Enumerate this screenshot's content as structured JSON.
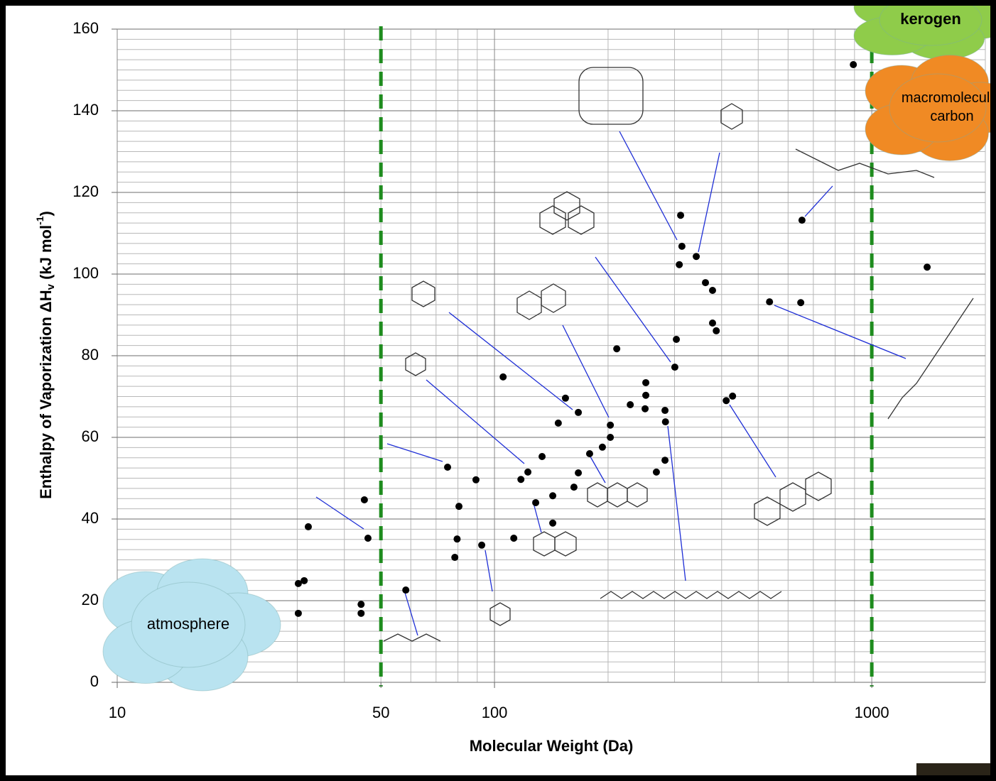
{
  "chart_data": {
    "type": "scatter",
    "xlabel": "Molecular Weight (Da)",
    "ylabel": {
      "main": "Enthalpy of Vaporization ΔH",
      "sub": "v",
      "mid": " (kJ mol",
      "sup": "-1",
      "end": ")"
    },
    "xlog": true,
    "xlim": [
      10,
      2000
    ],
    "xticks": [
      10,
      50,
      100,
      1000
    ],
    "ylim": [
      0,
      160
    ],
    "yticks": [
      0,
      20,
      40,
      60,
      80,
      100,
      120,
      140,
      160
    ],
    "grid": true,
    "yminor_step": 2.5,
    "log_minor_grid": true,
    "color": "#000000",
    "reference_lines": {
      "values": [
        50,
        1000
      ],
      "color": "#1e8c1e"
    },
    "regions": [
      {
        "label": "atmosphere",
        "color": "#b9e3f0"
      },
      {
        "label": "kerogen",
        "color": "#8fcc4a"
      },
      {
        "label": "macromolecular carbon",
        "color": "#f08a24"
      }
    ],
    "x": [
      30.2,
      30.2,
      31.3,
      32.1,
      44.3,
      44.3,
      45.2,
      46.2,
      58.2,
      75.1,
      78.5,
      79.6,
      80.5,
      89.3,
      92.5,
      105.4,
      112.5,
      117.5,
      122.6,
      128.6,
      133.7,
      142.7,
      142.7,
      147.6,
      154.2,
      162.4,
      166.8,
      166.8,
      178.7,
      193.2,
      202.8,
      202.8,
      210.9,
      229.0,
      251.8,
      251.8,
      250.7,
      268.6,
      283.1,
      283.9,
      283.1,
      300.6,
      303.4,
      308.9,
      311.4,
      313.9,
      342.6,
      362.4,
      378.4,
      378.4,
      387.1,
      411.3,
      427.6,
      535.8,
      648.3,
      653.2,
      893.6,
      1402
    ],
    "values": [
      16.9,
      24.2,
      24.9,
      38.1,
      19.1,
      16.9,
      44.7,
      35.3,
      22.6,
      52.7,
      30.6,
      35.1,
      43.1,
      49.6,
      33.6,
      74.8,
      35.3,
      49.7,
      51.5,
      44.0,
      55.3,
      45.7,
      39.0,
      63.5,
      69.6,
      47.8,
      66.1,
      51.3,
      56.0,
      57.6,
      60.0,
      63.0,
      81.7,
      68.0,
      73.4,
      70.3,
      67.0,
      51.5,
      66.6,
      63.8,
      54.4,
      77.2,
      84.0,
      102.3,
      114.4,
      106.8,
      104.3,
      97.9,
      96.0,
      88.0,
      86.1,
      69.0,
      70.1,
      93.2,
      93.0,
      113.2,
      151.3,
      101.7
    ]
  }
}
